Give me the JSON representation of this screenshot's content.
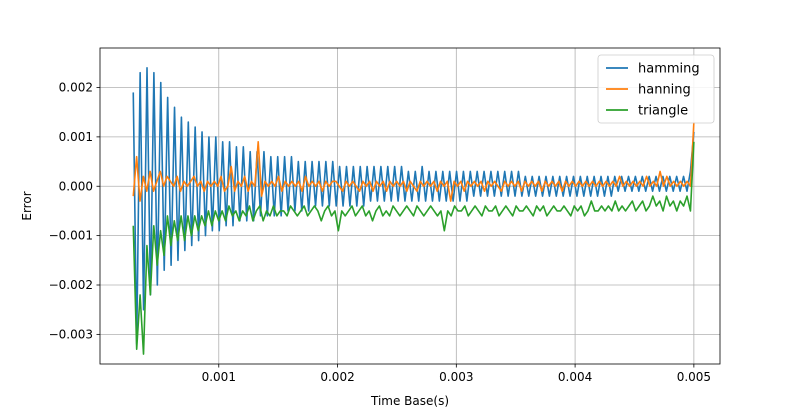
{
  "chart_data": {
    "type": "line",
    "title": "",
    "xlabel": "Time Base(s)",
    "ylabel": "Error",
    "xlim": [
      0.0,
      0.00522
    ],
    "ylim": [
      -0.0036,
      0.0028
    ],
    "xticks": [
      0.001,
      0.002,
      0.003,
      0.004,
      0.005
    ],
    "xtick_labels": [
      "0.001",
      "0.002",
      "0.003",
      "0.004",
      "0.005"
    ],
    "yticks": [
      0.002,
      0.001,
      0.0,
      -0.001,
      -0.002,
      -0.003
    ],
    "ytick_labels": [
      "0.002",
      "0.001",
      "0.000",
      "−0.001",
      "−0.002",
      "−0.003"
    ],
    "grid": true,
    "legend_position": "top-right",
    "x_start": 0.00028,
    "x_end": 0.005,
    "series": [
      {
        "name": "hamming",
        "color": "#1f77b4",
        "values": [
          0.0019,
          -0.0032,
          0.0023,
          -0.0025,
          0.0024,
          -0.0022,
          0.0023,
          -0.002,
          0.0021,
          -0.0017,
          0.0018,
          -0.0016,
          0.0016,
          -0.0015,
          0.0014,
          -0.0013,
          0.0013,
          -0.0012,
          0.0012,
          -0.0011,
          0.0011,
          -0.001,
          0.001,
          -0.0009,
          0.001,
          -0.0009,
          0.0009,
          -0.0008,
          0.0009,
          -0.0008,
          0.0008,
          -0.0007,
          0.0008,
          -0.0007,
          0.0007,
          -0.0007,
          0.0007,
          -0.0006,
          0.0007,
          -0.0006,
          0.0006,
          -0.0006,
          0.0006,
          -0.0006,
          0.0006,
          -0.0005,
          0.0006,
          -0.0005,
          0.0005,
          -0.0005,
          0.0005,
          -0.0005,
          0.0005,
          -0.0004,
          0.0005,
          -0.0004,
          0.0005,
          -0.0004,
          0.0005,
          -0.0004,
          0.0004,
          -0.0004,
          0.0004,
          -0.0004,
          0.0004,
          -0.0004,
          0.0004,
          -0.0004,
          0.0004,
          -0.0003,
          0.0004,
          -0.0003,
          0.0004,
          -0.0003,
          0.0004,
          -0.0003,
          0.0004,
          -0.0003,
          0.0004,
          -0.0003,
          0.0003,
          -0.0003,
          0.0003,
          -0.0003,
          0.0004,
          -0.0003,
          0.0003,
          -0.0003,
          0.0003,
          -0.0003,
          0.0003,
          -0.0003,
          0.0003,
          -0.0003,
          0.0003,
          -0.0003,
          0.0003,
          -0.0003,
          0.0003,
          -0.0002,
          0.0003,
          -0.0002,
          0.0003,
          -0.0002,
          0.0003,
          -0.0002,
          0.0003,
          -0.0002,
          0.0003,
          -0.0002,
          0.0003,
          -0.0002,
          0.0003,
          -0.0002,
          0.0002,
          -0.0002,
          0.0002,
          -0.0002,
          0.0002,
          -0.0002,
          0.0002,
          -0.0002,
          0.0002,
          -0.0002,
          0.0002,
          -0.0002,
          0.0002,
          -0.0002,
          0.0002,
          -0.0002,
          0.0002,
          -0.0002,
          0.0002,
          -0.0002,
          0.0002,
          -0.0002,
          0.0002,
          -0.0002,
          0.0002,
          -0.0002,
          0.0002,
          -0.0001,
          0.0002,
          -0.0001,
          0.0002,
          -0.0001,
          0.0002,
          -0.0001,
          0.0002,
          -0.0001,
          0.0002,
          -0.0001,
          0.0002,
          -0.0001,
          0.0002,
          -0.0001,
          0.0002,
          -0.0001,
          0.0002,
          -0.0001,
          0.0002,
          -0.0001,
          0.0003,
          0.0011
        ]
      },
      {
        "name": "hanning",
        "color": "#ff7f0e",
        "values": [
          -0.0002,
          0.0006,
          -0.0003,
          0.0002,
          -0.0001,
          0.0003,
          -0.0001,
          0.0001,
          0.0003,
          0.0,
          0.0002,
          0.0001,
          0.0,
          0.0002,
          -0.0001,
          0.0001,
          0.0,
          0.0001,
          0.0002,
          0.0,
          0.0001,
          -0.0001,
          0.0001,
          0.0,
          0.0001,
          0.0,
          0.0002,
          -0.0001,
          0.0,
          0.0004,
          -0.0001,
          0.0001,
          0.0,
          0.0002,
          -0.0001,
          0.0001,
          0.0,
          0.0009,
          -0.0002,
          0.0001,
          0.0,
          0.0001,
          0.0,
          0.0002,
          -0.0001,
          0.0001,
          0.0,
          0.0001,
          0.0,
          0.0001,
          -0.0001,
          0.0002,
          0.0,
          0.0001,
          0.0,
          0.0001,
          -0.0001,
          0.0001,
          0.0,
          0.0001,
          0.0001,
          0.0,
          -0.0001,
          0.0001,
          0.0,
          0.0001,
          0.0,
          -0.0001,
          0.0001,
          0.0,
          0.0001,
          -0.0001,
          0.0001,
          0.0,
          0.0001,
          -0.0001,
          0.0001,
          0.0,
          0.0001,
          0.0,
          0.0001,
          -0.0001,
          0.0001,
          0.0,
          -0.0001,
          0.0001,
          0.0,
          0.0001,
          0.0,
          0.0001,
          -0.0001,
          0.0001,
          0.0,
          0.0001,
          -0.0003,
          0.0001,
          0.0,
          0.0001,
          -0.0001,
          0.0001,
          0.0,
          0.0001,
          0.0,
          0.0001,
          -0.0001,
          0.0001,
          0.0,
          0.0001,
          0.0,
          -0.0001,
          0.0001,
          0.0,
          0.0001,
          0.0,
          0.0001,
          -0.0001,
          0.0001,
          0.0,
          0.0001,
          0.0,
          0.0001,
          -0.0001,
          0.0001,
          0.0,
          0.0001,
          0.0,
          0.0001,
          -0.0001,
          0.0001,
          0.0,
          0.0001,
          0.0,
          0.0001,
          0.0,
          0.0001,
          0.0,
          0.0001,
          0.0,
          0.0001,
          0.0,
          0.0001,
          0.0,
          0.0001,
          0.0,
          0.0002,
          0.0,
          0.0001,
          0.0,
          0.0001,
          0.0,
          0.0001,
          0.0,
          0.0002,
          0.0,
          0.0001,
          0.0,
          0.0003,
          0.0,
          0.0002,
          0.0,
          0.0001,
          0.0,
          0.0001,
          0.0,
          0.0001,
          0.0,
          0.0013
        ]
      },
      {
        "name": "triangle",
        "color": "#2ca02c",
        "values": [
          -0.0008,
          -0.0033,
          -0.0022,
          -0.0034,
          -0.0012,
          -0.0022,
          -0.0008,
          -0.0016,
          -0.0009,
          -0.0014,
          -0.0006,
          -0.0012,
          -0.0007,
          -0.0011,
          -0.0006,
          -0.0011,
          -0.0006,
          -0.001,
          -0.0006,
          -0.0009,
          -0.0006,
          -0.0008,
          -0.0005,
          -0.0008,
          -0.0005,
          -0.0007,
          -0.0005,
          -0.0007,
          -0.0004,
          -0.0006,
          -0.0005,
          -0.0007,
          -0.0005,
          -0.0006,
          -0.0004,
          -0.0007,
          -0.0005,
          -0.0004,
          -0.0007,
          -0.0005,
          -0.0006,
          -0.0004,
          -0.0006,
          -0.0005,
          -0.0005,
          -0.0006,
          -0.0004,
          -0.0005,
          -0.0006,
          -0.0005,
          -0.0004,
          -0.0006,
          -0.0005,
          -0.0004,
          -0.0005,
          -0.0007,
          -0.0005,
          -0.0004,
          -0.0006,
          -0.0005,
          -0.0009,
          -0.0005,
          -0.0006,
          -0.0005,
          -0.0004,
          -0.0006,
          -0.0005,
          -0.0004,
          -0.0006,
          -0.0005,
          -0.0007,
          -0.0005,
          -0.0004,
          -0.0006,
          -0.0005,
          -0.0006,
          -0.0004,
          -0.0005,
          -0.0006,
          -0.0005,
          -0.0004,
          -0.0005,
          -0.0006,
          -0.0004,
          -0.0005,
          -0.0006,
          -0.0005,
          -0.0004,
          -0.0005,
          -0.0006,
          -0.0005,
          -0.0009,
          -0.0005,
          -0.0006,
          -0.0004,
          -0.0005,
          -0.0005,
          -0.0004,
          -0.0006,
          -0.0005,
          -0.0004,
          -0.0005,
          -0.0006,
          -0.0004,
          -0.0005,
          -0.0005,
          -0.0004,
          -0.0006,
          -0.0005,
          -0.0004,
          -0.0005,
          -0.0006,
          -0.0004,
          -0.0005,
          -0.0005,
          -0.0004,
          -0.0005,
          -0.0006,
          -0.0004,
          -0.0005,
          -0.0004,
          -0.0006,
          -0.0005,
          -0.0004,
          -0.0005,
          -0.0005,
          -0.0004,
          -0.0005,
          -0.0006,
          -0.0004,
          -0.0005,
          -0.0004,
          -0.0006,
          -0.0005,
          -0.0003,
          -0.0005,
          -0.0005,
          -0.0004,
          -0.0005,
          -0.0004,
          -0.0005,
          -0.0003,
          -0.0005,
          -0.0004,
          -0.0005,
          -0.0004,
          -0.0003,
          -0.0005,
          -0.0004,
          -0.0003,
          -0.0005,
          -0.0004,
          -0.0002,
          -0.0004,
          -0.0003,
          -0.0005,
          -0.0002,
          -0.0004,
          -0.0003,
          -0.0005,
          -0.0003,
          -0.0004,
          -0.0002,
          -0.0005,
          0.0009
        ]
      }
    ]
  }
}
